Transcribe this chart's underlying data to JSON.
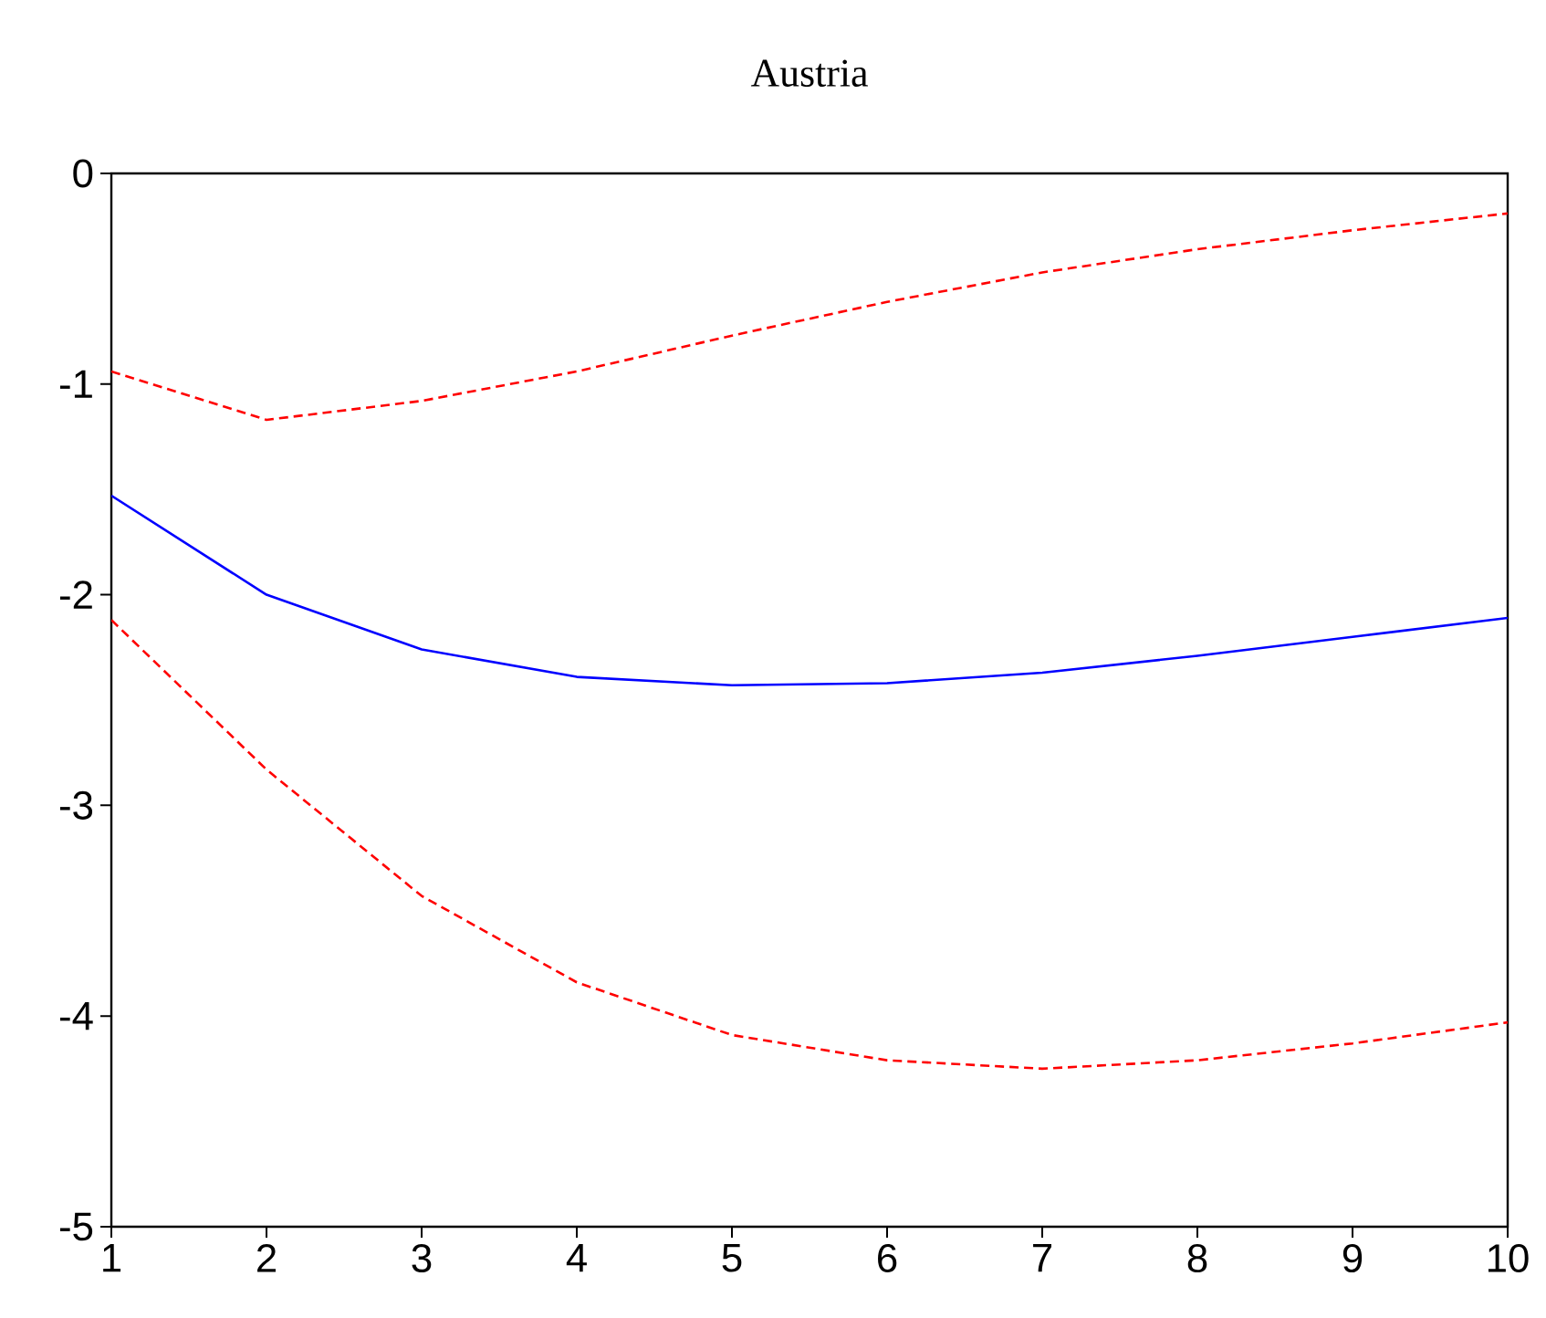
{
  "chart_data": {
    "type": "line",
    "title": "Austria",
    "x": [
      1,
      2,
      3,
      4,
      5,
      6,
      7,
      8,
      9,
      10
    ],
    "series": [
      {
        "color": "#0000ff",
        "line_style": "solid",
        "values": [
          -1.53,
          -2.0,
          -2.26,
          -2.39,
          -2.43,
          -2.42,
          -2.37,
          -2.29,
          -2.2,
          -2.11
        ]
      },
      {
        "color": "#ff0000",
        "line_style": "dashed",
        "values": [
          -0.94,
          -1.17,
          -1.08,
          -0.94,
          -0.77,
          -0.61,
          -0.47,
          -0.36,
          -0.27,
          -0.19
        ]
      },
      {
        "color": "#ff0000",
        "line_style": "dashed",
        "values": [
          -2.12,
          -2.83,
          -3.43,
          -3.84,
          -4.09,
          -4.21,
          -4.25,
          -4.21,
          -4.13,
          -4.03
        ]
      }
    ],
    "xlim": [
      1,
      10
    ],
    "xticks": [
      1,
      2,
      3,
      4,
      5,
      6,
      7,
      8,
      9,
      10
    ],
    "ylim": [
      -5,
      0
    ],
    "yticks": [
      -5,
      -4,
      -3,
      -2,
      -1,
      0
    ],
    "grid": false,
    "marker": "none"
  }
}
